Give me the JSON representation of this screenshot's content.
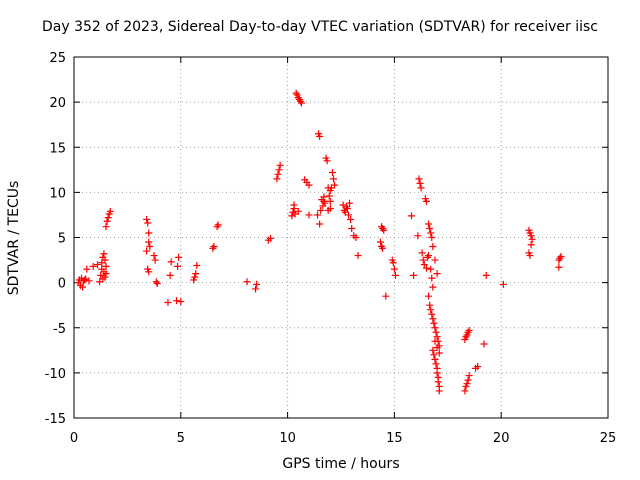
{
  "chart_data": {
    "type": "scatter",
    "title": "Day 352 of 2023, Sidereal Day-to-day VTEC variation (SDTVAR) for receiver iisc",
    "xlabel": "GPS time / hours",
    "ylabel": "SDTVAR / TECUs",
    "xlim": [
      0,
      25
    ],
    "ylim": [
      -15,
      25
    ],
    "xticks": [
      0,
      5,
      10,
      15,
      20,
      25
    ],
    "yticks": [
      -15,
      -10,
      -5,
      0,
      5,
      10,
      15,
      20,
      25
    ],
    "xtick_labels": [
      "0",
      "5",
      "10",
      "15",
      "20",
      "25"
    ],
    "ytick_labels": [
      "-15",
      "-10",
      "-5",
      "0",
      "5",
      "10",
      "15",
      "20",
      "25"
    ],
    "grid": true,
    "marker": "+",
    "color": "#ff0000",
    "series": [
      {
        "name": "SDTVAR",
        "points": [
          [
            0.2,
            0.0
          ],
          [
            0.25,
            0.3
          ],
          [
            0.3,
            -0.3
          ],
          [
            0.35,
            0.5
          ],
          [
            0.4,
            -0.5
          ],
          [
            0.45,
            0.2
          ],
          [
            0.5,
            0.3
          ],
          [
            0.55,
            0.4
          ],
          [
            0.6,
            1.5
          ],
          [
            0.7,
            0.2
          ],
          [
            0.9,
            1.8
          ],
          [
            1.1,
            2.0
          ],
          [
            1.2,
            0.1
          ],
          [
            1.25,
            0.8
          ],
          [
            1.3,
            1.5
          ],
          [
            1.3,
            2.2
          ],
          [
            1.35,
            0.4
          ],
          [
            1.35,
            2.8
          ],
          [
            1.4,
            1.2
          ],
          [
            1.4,
            3.2
          ],
          [
            1.45,
            0.6
          ],
          [
            1.45,
            2.5
          ],
          [
            1.5,
            1.0
          ],
          [
            1.5,
            1.8
          ],
          [
            1.5,
            6.2
          ],
          [
            1.55,
            6.8
          ],
          [
            1.6,
            7.2
          ],
          [
            1.65,
            7.6
          ],
          [
            1.7,
            7.9
          ],
          [
            3.4,
            7.0
          ],
          [
            3.45,
            6.6
          ],
          [
            3.5,
            5.5
          ],
          [
            3.5,
            4.5
          ],
          [
            3.55,
            4.0
          ],
          [
            3.4,
            3.5
          ],
          [
            3.45,
            1.5
          ],
          [
            3.5,
            1.2
          ],
          [
            3.8,
            2.5
          ],
          [
            3.85,
            0.1
          ],
          [
            3.9,
            -0.1
          ],
          [
            3.75,
            3.0
          ],
          [
            4.4,
            -2.2
          ],
          [
            4.5,
            0.8
          ],
          [
            4.55,
            2.3
          ],
          [
            4.8,
            -2.0
          ],
          [
            4.85,
            1.8
          ],
          [
            4.9,
            2.8
          ],
          [
            5.0,
            -2.1
          ],
          [
            5.6,
            0.3
          ],
          [
            5.65,
            0.6
          ],
          [
            5.7,
            1.0
          ],
          [
            5.75,
            1.9
          ],
          [
            6.5,
            3.8
          ],
          [
            6.55,
            4.0
          ],
          [
            6.7,
            6.2
          ],
          [
            6.75,
            6.4
          ],
          [
            8.1,
            0.1
          ],
          [
            8.5,
            -0.7
          ],
          [
            8.55,
            -0.2
          ],
          [
            9.1,
            4.7
          ],
          [
            9.2,
            4.9
          ],
          [
            9.5,
            11.5
          ],
          [
            9.55,
            12.0
          ],
          [
            9.6,
            12.5
          ],
          [
            9.65,
            13.0
          ],
          [
            10.2,
            7.4
          ],
          [
            10.25,
            7.8
          ],
          [
            10.3,
            8.2
          ],
          [
            10.35,
            7.6
          ],
          [
            10.4,
            21.0
          ],
          [
            10.45,
            20.8
          ],
          [
            10.5,
            20.5
          ],
          [
            10.55,
            20.3
          ],
          [
            10.6,
            20.1
          ],
          [
            10.65,
            19.9
          ],
          [
            10.3,
            8.6
          ],
          [
            10.5,
            7.9
          ],
          [
            10.8,
            11.4
          ],
          [
            10.9,
            11.1
          ],
          [
            11.0,
            10.8
          ],
          [
            11.0,
            7.5
          ],
          [
            11.4,
            7.5
          ],
          [
            11.45,
            16.5
          ],
          [
            11.5,
            16.2
          ],
          [
            11.5,
            6.5
          ],
          [
            11.55,
            8.0
          ],
          [
            11.6,
            9.2
          ],
          [
            11.65,
            8.5
          ],
          [
            11.7,
            9.5
          ],
          [
            11.75,
            8.8
          ],
          [
            11.8,
            13.8
          ],
          [
            11.85,
            13.5
          ],
          [
            11.9,
            10.5
          ],
          [
            11.95,
            9.6
          ],
          [
            12.0,
            9.0
          ],
          [
            12.0,
            8.2
          ],
          [
            12.05,
            10.5
          ],
          [
            12.1,
            12.2
          ],
          [
            12.15,
            11.5
          ],
          [
            12.2,
            10.8
          ],
          [
            12.0,
            10.2
          ],
          [
            11.7,
            9.0
          ],
          [
            11.9,
            8.0
          ],
          [
            12.6,
            8.6
          ],
          [
            12.65,
            8.0
          ],
          [
            12.7,
            7.8
          ],
          [
            12.75,
            8.4
          ],
          [
            12.8,
            8.2
          ],
          [
            12.85,
            7.5
          ],
          [
            12.9,
            8.8
          ],
          [
            12.95,
            7.0
          ],
          [
            13.0,
            6.0
          ],
          [
            13.1,
            5.2
          ],
          [
            13.2,
            5.0
          ],
          [
            13.3,
            3.0
          ],
          [
            14.4,
            6.2
          ],
          [
            14.45,
            6.0
          ],
          [
            14.5,
            5.8
          ],
          [
            14.35,
            4.5
          ],
          [
            14.4,
            4.0
          ],
          [
            14.45,
            3.8
          ],
          [
            14.6,
            -1.5
          ],
          [
            14.9,
            2.5
          ],
          [
            14.95,
            2.2
          ],
          [
            15.0,
            1.5
          ],
          [
            15.05,
            0.8
          ],
          [
            15.8,
            7.4
          ],
          [
            15.9,
            0.8
          ],
          [
            16.1,
            5.2
          ],
          [
            16.15,
            11.5
          ],
          [
            16.2,
            11.0
          ],
          [
            16.25,
            10.5
          ],
          [
            16.3,
            3.3
          ],
          [
            16.35,
            2.5
          ],
          [
            16.4,
            2.0
          ],
          [
            16.45,
            9.3
          ],
          [
            16.5,
            9.0
          ],
          [
            16.5,
            1.6
          ],
          [
            16.55,
            2.8
          ],
          [
            16.6,
            6.5
          ],
          [
            16.65,
            6.0
          ],
          [
            16.7,
            5.5
          ],
          [
            16.75,
            5.0
          ],
          [
            16.8,
            4.0
          ],
          [
            16.6,
            3.0
          ],
          [
            16.7,
            1.5
          ],
          [
            16.75,
            0.5
          ],
          [
            16.8,
            -0.5
          ],
          [
            16.6,
            -1.5
          ],
          [
            16.65,
            -2.5
          ],
          [
            16.7,
            -3.0
          ],
          [
            16.75,
            -3.5
          ],
          [
            16.8,
            -4.0
          ],
          [
            16.85,
            -4.5
          ],
          [
            16.9,
            -5.0
          ],
          [
            16.95,
            -5.5
          ],
          [
            17.0,
            -6.0
          ],
          [
            17.05,
            -6.5
          ],
          [
            17.1,
            -7.0
          ],
          [
            16.8,
            -7.5
          ],
          [
            16.85,
            -8.0
          ],
          [
            16.9,
            -8.5
          ],
          [
            16.95,
            -9.0
          ],
          [
            17.0,
            -9.5
          ],
          [
            17.0,
            -10.0
          ],
          [
            17.05,
            -10.5
          ],
          [
            17.05,
            -11.0
          ],
          [
            17.1,
            -11.5
          ],
          [
            17.1,
            -12.0
          ],
          [
            16.9,
            -6.5
          ],
          [
            17.0,
            -7.2
          ],
          [
            17.1,
            -7.8
          ],
          [
            16.9,
            2.5
          ],
          [
            17.0,
            1.0
          ],
          [
            18.3,
            -6.3
          ],
          [
            18.35,
            -6.0
          ],
          [
            18.4,
            -5.8
          ],
          [
            18.45,
            -5.5
          ],
          [
            18.5,
            -5.3
          ],
          [
            18.3,
            -12.0
          ],
          [
            18.35,
            -11.5
          ],
          [
            18.4,
            -11.2
          ],
          [
            18.45,
            -10.8
          ],
          [
            18.5,
            -10.3
          ],
          [
            18.8,
            -9.5
          ],
          [
            18.9,
            -9.3
          ],
          [
            19.2,
            -6.8
          ],
          [
            19.3,
            0.8
          ],
          [
            20.1,
            -0.2
          ],
          [
            21.3,
            5.8
          ],
          [
            21.35,
            5.5
          ],
          [
            21.4,
            5.2
          ],
          [
            21.45,
            4.8
          ],
          [
            21.4,
            4.2
          ],
          [
            21.3,
            3.3
          ],
          [
            21.35,
            3.0
          ],
          [
            22.7,
            2.5
          ],
          [
            22.75,
            2.7
          ],
          [
            22.8,
            2.9
          ],
          [
            22.7,
            1.7
          ]
        ]
      }
    ]
  }
}
